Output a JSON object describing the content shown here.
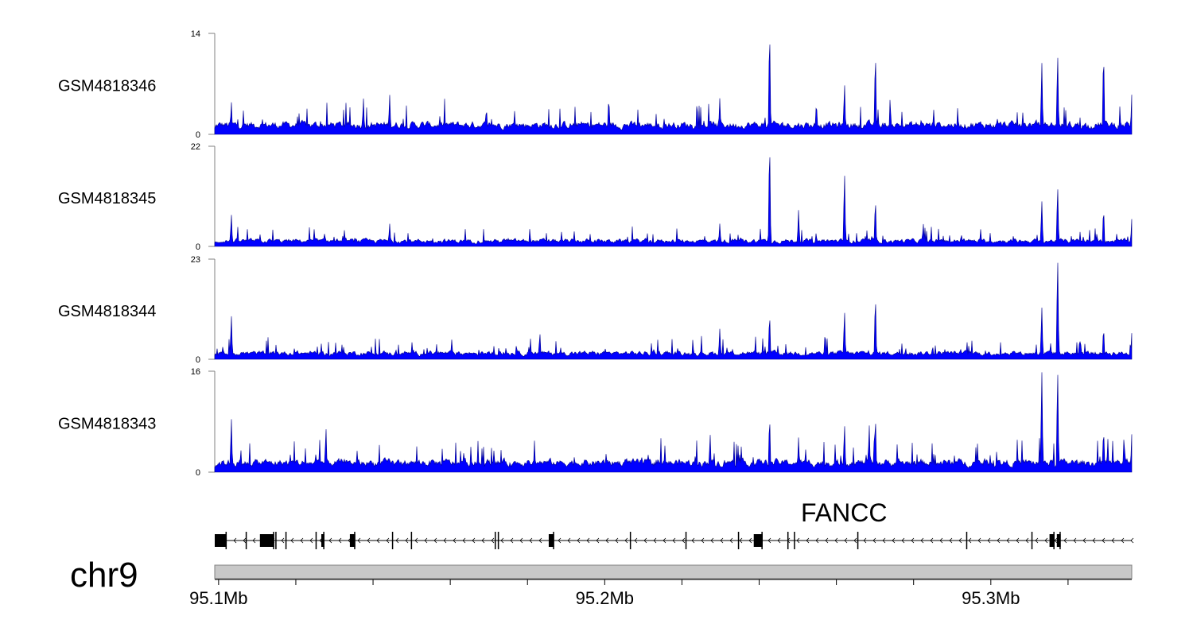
{
  "chart_data": {
    "type": "area",
    "title": "",
    "chromosome": "chr9",
    "xrange_mb": [
      95.099,
      95.3365
    ],
    "x_axis": {
      "ticks_mb": [
        95.1,
        95.2,
        95.3
      ],
      "tick_labels": [
        "95.1Mb",
        "95.2Mb",
        "95.3Mb"
      ],
      "minor_step_mb": 0.02
    },
    "fill_color": "#0000ff",
    "stroke_color": "#00008b",
    "tracks": [
      {
        "name": "GSM4818346",
        "ylim": [
          0,
          14
        ],
        "ytick_labels": [
          "0",
          "14"
        ],
        "baseline": 1.3,
        "peaks": [
          [
            95.2427,
            14
          ],
          [
            95.2701,
            11
          ],
          [
            95.2621,
            7
          ],
          [
            95.3132,
            10
          ],
          [
            95.3173,
            11
          ],
          [
            95.3292,
            11
          ],
          [
            95.2298,
            5
          ],
          [
            95.3365,
            5.5
          ],
          [
            95.1375,
            5
          ],
          [
            95.1443,
            5.5
          ],
          [
            95.1033,
            4.5
          ]
        ]
      },
      {
        "name": "GSM4818345",
        "ylim": [
          0,
          22
        ],
        "ytick_labels": [
          "0",
          "22"
        ],
        "baseline": 1.2,
        "peaks": [
          [
            95.2427,
            22
          ],
          [
            95.2621,
            16
          ],
          [
            95.2701,
            10
          ],
          [
            95.2502,
            8
          ],
          [
            95.3132,
            10
          ],
          [
            95.3173,
            13
          ],
          [
            95.3292,
            8
          ],
          [
            95.1033,
            7
          ],
          [
            95.1443,
            5
          ],
          [
            95.2825,
            5
          ],
          [
            95.3365,
            6
          ],
          [
            95.2298,
            5
          ]
        ]
      },
      {
        "name": "GSM4818344",
        "ylim": [
          0,
          23
        ],
        "ytick_labels": [
          "0",
          "23"
        ],
        "baseline": 1.4,
        "peaks": [
          [
            95.3173,
            23
          ],
          [
            95.2701,
            14
          ],
          [
            95.3132,
            12
          ],
          [
            95.2427,
            10
          ],
          [
            95.2621,
            11
          ],
          [
            95.1033,
            10
          ],
          [
            95.2298,
            7
          ],
          [
            95.3292,
            7
          ],
          [
            95.1832,
            6
          ],
          [
            95.3365,
            6
          ]
        ]
      },
      {
        "name": "GSM4818343",
        "ylim": [
          0,
          16
        ],
        "ytick_labels": [
          "0",
          "16"
        ],
        "baseline": 1.5,
        "peaks": [
          [
            95.3132,
            16
          ],
          [
            95.3173,
            16
          ],
          [
            95.2427,
            8.5
          ],
          [
            95.2701,
            8.5
          ],
          [
            95.2621,
            7.5
          ],
          [
            95.2685,
            7.5
          ],
          [
            95.1033,
            8.5
          ],
          [
            95.1278,
            7
          ],
          [
            95.2273,
            6
          ],
          [
            95.3292,
            6.5
          ],
          [
            95.3365,
            6
          ],
          [
            95.3345,
            5.5
          ],
          [
            95.2502,
            5.5
          ]
        ]
      }
    ],
    "gene": {
      "name": "FANCC",
      "strand": "-",
      "exons_mb": [
        [
          95.099,
          95.1021
        ],
        [
          95.107,
          95.1071
        ],
        [
          95.1107,
          95.1144
        ],
        [
          95.1146,
          95.115
        ],
        [
          95.1173,
          95.1174
        ],
        [
          95.1251,
          95.1252
        ],
        [
          95.1266,
          95.1274
        ],
        [
          95.134,
          95.1354
        ],
        [
          95.1449,
          95.145
        ],
        [
          95.1498,
          95.1499
        ],
        [
          95.1715,
          95.1716
        ],
        [
          95.1723,
          95.1724
        ],
        [
          95.1855,
          95.1869
        ],
        [
          95.2065,
          95.2066
        ],
        [
          95.2209,
          95.221
        ],
        [
          95.2345,
          95.2346
        ],
        [
          95.2386,
          95.2409
        ],
        [
          95.2473,
          95.2474
        ],
        [
          95.2487,
          95.2493
        ],
        [
          95.2654,
          95.2655
        ],
        [
          95.2936,
          95.2937
        ],
        [
          95.3105,
          95.3106
        ],
        [
          95.3152,
          95.3165
        ],
        [
          95.3171,
          95.3181
        ]
      ]
    }
  }
}
